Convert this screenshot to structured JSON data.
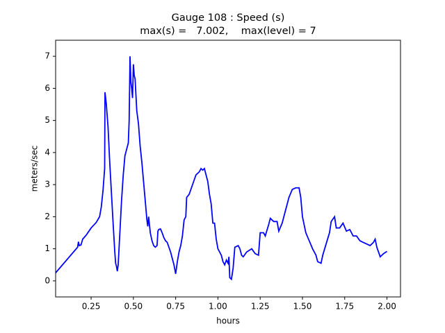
{
  "chart_data": {
    "type": "line",
    "title": "Gauge 108 : Speed (s)",
    "subtitle": "max(s) =   7.002,    max(level) = 7",
    "xlabel": "hours",
    "ylabel": "meters/sec",
    "color": "#0000ff",
    "xlim": [
      0.04,
      2.08
    ],
    "ylim": [
      -0.5,
      7.5
    ],
    "xticks": [
      0.25,
      {
        "value": 0.5,
        "label": "0.50"
      },
      0.75,
      {
        "value": 1,
        "label": "1.00"
      },
      1.25,
      {
        "value": 1.5,
        "label": "1.50"
      },
      1.75,
      {
        "value": 2,
        "label": "2.00"
      }
    ],
    "yticks": [
      0,
      1,
      2,
      3,
      4,
      5,
      6,
      7
    ],
    "x": [
      0.04,
      0.17,
      0.175,
      0.18,
      0.19,
      0.2,
      0.22,
      0.25,
      0.28,
      0.3,
      0.31,
      0.32,
      0.33,
      0.332,
      0.34,
      0.35,
      0.36,
      0.38,
      0.39,
      0.395,
      0.4,
      0.405,
      0.41,
      0.42,
      0.43,
      0.44,
      0.45,
      0.46,
      0.47,
      0.475,
      0.48,
      0.485,
      0.49,
      0.495,
      0.5,
      0.505,
      0.51,
      0.515,
      0.52,
      0.53,
      0.54,
      0.55,
      0.56,
      0.57,
      0.58,
      0.585,
      0.59,
      0.6,
      0.61,
      0.62,
      0.63,
      0.64,
      0.645,
      0.65,
      0.66,
      0.67,
      0.68,
      0.69,
      0.7,
      0.72,
      0.74,
      0.75,
      0.76,
      0.77,
      0.78,
      0.79,
      0.8,
      0.81,
      0.815,
      0.83,
      0.85,
      0.87,
      0.89,
      0.9,
      0.91,
      0.92,
      0.93,
      0.94,
      0.95,
      0.96,
      0.97,
      0.98,
      0.99,
      1.0,
      1.02,
      1.03,
      1.04,
      1.05,
      1.06,
      1.065,
      1.07,
      1.08,
      1.09,
      1.1,
      1.12,
      1.13,
      1.14,
      1.15,
      1.17,
      1.2,
      1.22,
      1.24,
      1.25,
      1.27,
      1.28,
      1.3,
      1.31,
      1.33,
      1.35,
      1.36,
      1.38,
      1.4,
      1.42,
      1.44,
      1.46,
      1.48,
      1.49,
      1.5,
      1.52,
      1.54,
      1.56,
      1.58,
      1.59,
      1.61,
      1.62,
      1.64,
      1.66,
      1.67,
      1.69,
      1.7,
      1.72,
      1.74,
      1.76,
      1.78,
      1.8,
      1.82,
      1.84,
      1.86,
      1.88,
      1.9,
      1.92,
      1.93,
      1.94,
      1.96,
      1.98,
      2.0
    ],
    "values": [
      0.25,
      1.05,
      1.22,
      1.1,
      1.12,
      1.3,
      1.42,
      1.65,
      1.82,
      2.0,
      2.3,
      2.8,
      3.5,
      5.88,
      5.5,
      4.8,
      3.7,
      1.8,
      0.9,
      0.55,
      0.45,
      0.3,
      0.5,
      1.5,
      2.5,
      3.3,
      3.9,
      4.1,
      4.3,
      5.0,
      7.0,
      6.2,
      6.0,
      5.7,
      6.75,
      6.4,
      6.3,
      5.8,
      5.3,
      4.9,
      4.2,
      3.7,
      3.1,
      2.5,
      1.9,
      1.7,
      2.0,
      1.5,
      1.25,
      1.1,
      1.05,
      1.1,
      1.55,
      1.6,
      1.62,
      1.5,
      1.35,
      1.25,
      1.2,
      0.9,
      0.5,
      0.22,
      0.6,
      0.9,
      1.1,
      1.4,
      1.9,
      2.0,
      2.6,
      2.7,
      3.0,
      3.3,
      3.4,
      3.5,
      3.45,
      3.5,
      3.3,
      3.1,
      2.7,
      2.4,
      1.8,
      1.8,
      1.3,
      1.0,
      0.8,
      0.6,
      0.5,
      0.65,
      0.55,
      0.75,
      0.1,
      0.05,
      0.4,
      1.05,
      1.1,
      1.0,
      0.8,
      0.75,
      0.9,
      1.0,
      0.85,
      0.8,
      1.5,
      1.5,
      1.4,
      1.75,
      1.95,
      1.85,
      1.85,
      1.55,
      1.8,
      2.2,
      2.6,
      2.85,
      2.9,
      2.9,
      2.6,
      2.0,
      1.5,
      1.25,
      1.0,
      0.8,
      0.6,
      0.55,
      0.8,
      1.15,
      1.5,
      1.85,
      2.0,
      1.65,
      1.65,
      1.8,
      1.55,
      1.6,
      1.4,
      1.4,
      1.25,
      1.2,
      1.15,
      1.1,
      1.2,
      1.3,
      1.05,
      0.75,
      0.85,
      0.92
    ]
  }
}
